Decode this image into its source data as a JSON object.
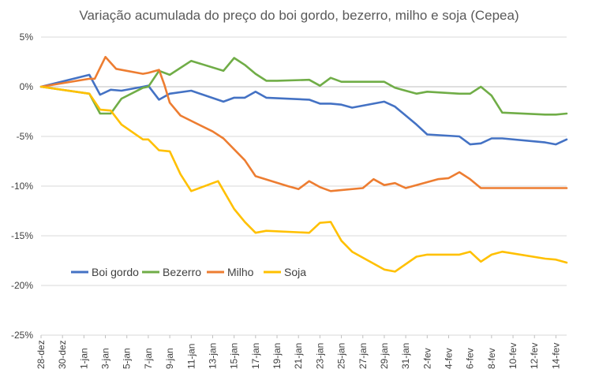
{
  "chart_data": {
    "type": "line",
    "title": "Variação acumulada do preço do boi gordo, bezerro, milho e soja (Cepea)",
    "xlabel": "",
    "ylabel": "",
    "ylim": [
      -25,
      5
    ],
    "y_ticks": [
      5,
      0,
      -5,
      -10,
      -15,
      -20,
      -25
    ],
    "y_tick_labels": [
      "5%",
      "0%",
      "-5%",
      "-10%",
      "-15%",
      "-20%",
      "-25%"
    ],
    "grid": "horizontal",
    "legend_position": "bottom-left inside",
    "x_ticks": [
      "28-dez",
      "30-dez",
      "1-jan",
      "3-jan",
      "5-jan",
      "7-jan",
      "9-jan",
      "11-jan",
      "13-jan",
      "15-jan",
      "17-jan",
      "19-jan",
      "21-jan",
      "23-jan",
      "25-jan",
      "27-jan",
      "29-jan",
      "31-jan",
      "2-fev",
      "4-fev",
      "6-fev",
      "8-fev",
      "10-fev",
      "12-fev",
      "14-fev"
    ],
    "series": [
      {
        "name": "Boi gordo",
        "color": "#4472C4",
        "points": [
          [
            0,
            0
          ],
          [
            4.5,
            1.2
          ],
          [
            5.5,
            -0.8
          ],
          [
            6.5,
            -0.3
          ],
          [
            7.5,
            -0.4
          ],
          [
            9.5,
            0
          ],
          [
            10,
            0.1
          ],
          [
            11,
            -1.3
          ],
          [
            12,
            -0.7
          ],
          [
            14,
            -0.4
          ],
          [
            17,
            -1.5
          ],
          [
            18,
            -1.1
          ],
          [
            19,
            -1.1
          ],
          [
            20,
            -0.5
          ],
          [
            21,
            -1.1
          ],
          [
            25,
            -1.3
          ],
          [
            26,
            -1.7
          ],
          [
            27,
            -1.7
          ],
          [
            28,
            -1.8
          ],
          [
            29,
            -2.1
          ],
          [
            32,
            -1.5
          ],
          [
            33,
            -2.0
          ],
          [
            35,
            -3.8
          ],
          [
            36,
            -4.8
          ],
          [
            39,
            -5.0
          ],
          [
            40,
            -5.8
          ],
          [
            41,
            -5.7
          ],
          [
            42,
            -5.2
          ],
          [
            43,
            -5.2
          ],
          [
            47,
            -5.6
          ],
          [
            48,
            -5.8
          ],
          [
            49,
            -5.3
          ]
        ]
      },
      {
        "name": "Bezerro",
        "color": "#70AD47",
        "points": [
          [
            0,
            0
          ],
          [
            4.5,
            -0.7
          ],
          [
            5.5,
            -2.7
          ],
          [
            6.5,
            -2.7
          ],
          [
            7.5,
            -1.2
          ],
          [
            9.5,
            -0.1
          ],
          [
            10,
            0
          ],
          [
            11,
            1.6
          ],
          [
            12,
            1.2
          ],
          [
            14,
            2.6
          ],
          [
            17,
            1.6
          ],
          [
            18,
            2.9
          ],
          [
            19,
            2.2
          ],
          [
            20,
            1.3
          ],
          [
            21,
            0.6
          ],
          [
            22,
            0.6
          ],
          [
            25,
            0.7
          ],
          [
            26,
            0.1
          ],
          [
            27,
            0.9
          ],
          [
            28,
            0.5
          ],
          [
            32,
            0.5
          ],
          [
            33,
            -0.1
          ],
          [
            35,
            -0.7
          ],
          [
            36,
            -0.5
          ],
          [
            39,
            -0.7
          ],
          [
            40,
            -0.7
          ],
          [
            41,
            0
          ],
          [
            42,
            -0.9
          ],
          [
            43,
            -2.6
          ],
          [
            47,
            -2.8
          ],
          [
            48,
            -2.8
          ],
          [
            49,
            -2.7
          ]
        ]
      },
      {
        "name": "Milho",
        "color": "#ED7D31",
        "points": [
          [
            0,
            0
          ],
          [
            4.5,
            0.8
          ],
          [
            5,
            0.8
          ],
          [
            6,
            3.0
          ],
          [
            7,
            1.8
          ],
          [
            9.5,
            1.3
          ],
          [
            10,
            1.4
          ],
          [
            11,
            1.7
          ],
          [
            11.5,
            0.2
          ],
          [
            12,
            -1.6
          ],
          [
            13,
            -2.9
          ],
          [
            16,
            -4.5
          ],
          [
            17,
            -5.2
          ],
          [
            19,
            -7.4
          ],
          [
            20,
            -9.0
          ],
          [
            23,
            -10.0
          ],
          [
            24,
            -10.3
          ],
          [
            25,
            -9.5
          ],
          [
            26,
            -10.1
          ],
          [
            27,
            -10.5
          ],
          [
            30,
            -10.2
          ],
          [
            31,
            -9.3
          ],
          [
            32,
            -9.9
          ],
          [
            33,
            -9.7
          ],
          [
            34,
            -10.2
          ],
          [
            37,
            -9.3
          ],
          [
            38,
            -9.2
          ],
          [
            39,
            -8.6
          ],
          [
            40,
            -9.3
          ],
          [
            41,
            -10.2
          ],
          [
            45,
            -10.2
          ],
          [
            48,
            -10.2
          ],
          [
            49,
            -10.2
          ]
        ]
      },
      {
        "name": "Soja",
        "color": "#FFC000",
        "points": [
          [
            0,
            0
          ],
          [
            4.5,
            -0.7
          ],
          [
            5.5,
            -2.3
          ],
          [
            6.5,
            -2.4
          ],
          [
            7.5,
            -3.8
          ],
          [
            9.5,
            -5.3
          ],
          [
            10,
            -5.3
          ],
          [
            11,
            -6.4
          ],
          [
            12,
            -6.5
          ],
          [
            13,
            -8.8
          ],
          [
            14,
            -10.5
          ],
          [
            16.5,
            -9.5
          ],
          [
            18,
            -12.3
          ],
          [
            19,
            -13.6
          ],
          [
            20,
            -14.7
          ],
          [
            21,
            -14.5
          ],
          [
            25,
            -14.7
          ],
          [
            26,
            -13.7
          ],
          [
            27,
            -13.6
          ],
          [
            28,
            -15.5
          ],
          [
            29,
            -16.6
          ],
          [
            32,
            -18.4
          ],
          [
            33,
            -18.6
          ],
          [
            35,
            -17.1
          ],
          [
            36,
            -16.9
          ],
          [
            39,
            -16.9
          ],
          [
            40,
            -16.6
          ],
          [
            41,
            -17.6
          ],
          [
            42,
            -16.9
          ],
          [
            43,
            -16.6
          ],
          [
            47,
            -17.3
          ],
          [
            48,
            -17.4
          ],
          [
            49,
            -17.7
          ]
        ]
      }
    ]
  }
}
